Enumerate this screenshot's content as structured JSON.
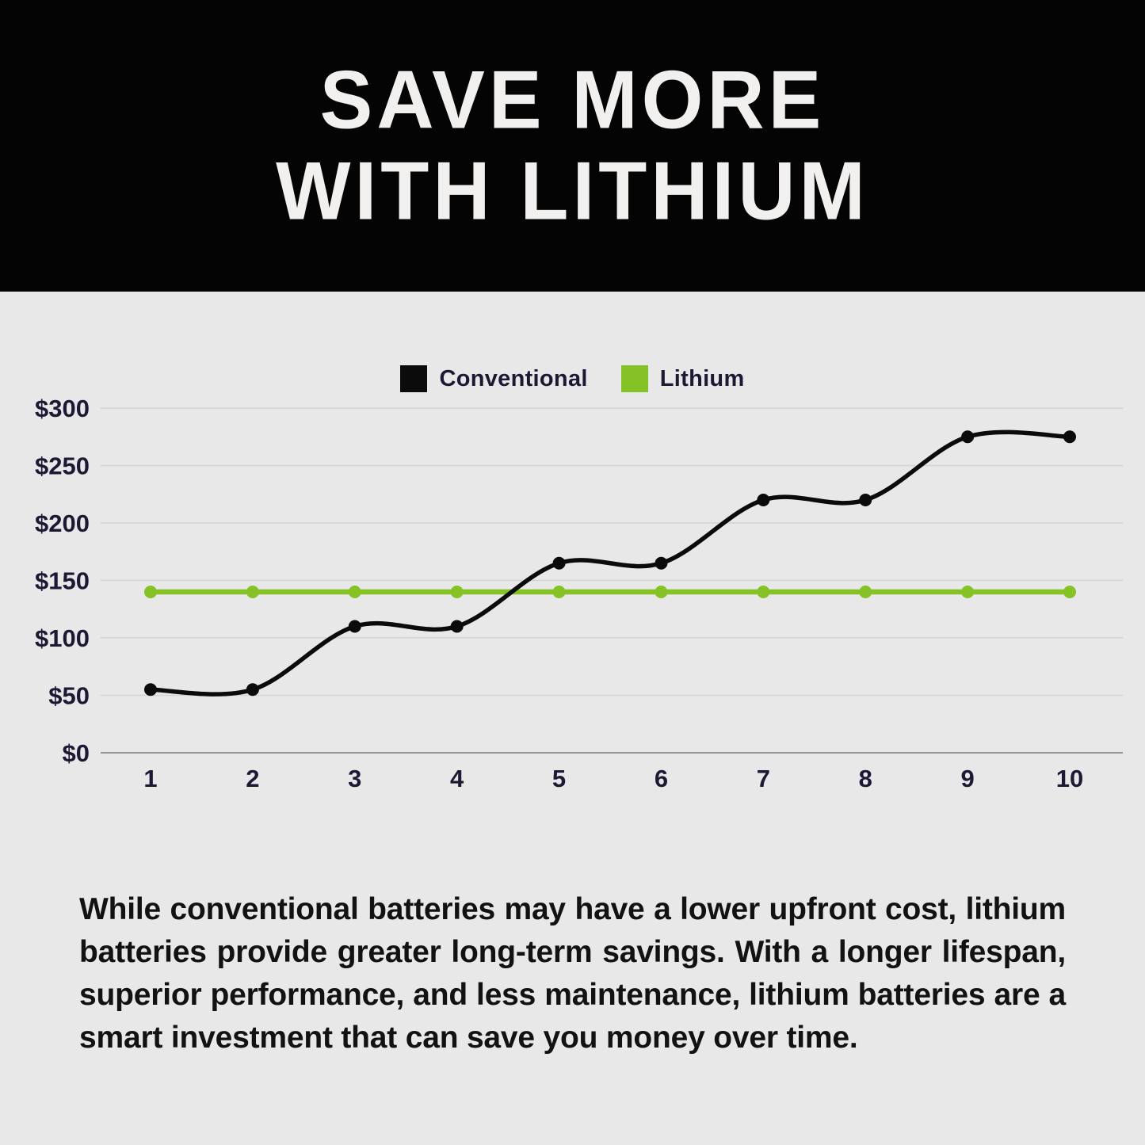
{
  "header": {
    "title_line1": "SAVE MORE",
    "title_line2": "WITH LITHIUM"
  },
  "legend": [
    {
      "label": "Conventional",
      "color": "#0b0b0b"
    },
    {
      "label": "Lithium",
      "color": "#84c226"
    }
  ],
  "chart_data": {
    "type": "line",
    "title": "",
    "x": [
      1,
      2,
      3,
      4,
      5,
      6,
      7,
      8,
      9,
      10
    ],
    "series": [
      {
        "name": "Conventional",
        "color": "#0b0b0b",
        "smooth": true,
        "values": [
          55,
          55,
          110,
          110,
          165,
          165,
          220,
          220,
          275,
          275
        ]
      },
      {
        "name": "Lithium",
        "color": "#84c226",
        "smooth": false,
        "values": [
          140,
          140,
          140,
          140,
          140,
          140,
          140,
          140,
          140,
          140
        ]
      }
    ],
    "yticks": [
      "$0",
      "$50",
      "$100",
      "$150",
      "$200",
      "$250",
      "$300"
    ],
    "ytick_values": [
      0,
      50,
      100,
      150,
      200,
      250,
      300
    ],
    "ylim": [
      0,
      300
    ],
    "xlabel": "",
    "ylabel": "",
    "grid": true,
    "legend_position": "top"
  },
  "body": {
    "paragraph": "While conventional batteries may have a lower upfront cost, lithium batteries provide greater long-term savings. With a longer lifespan, superior performance, and less maintenance, lithium batteries are a smart investment that can save you money over time."
  },
  "colors": {
    "background": "#e9e8e8",
    "header_background": "#040404",
    "title_text": "#f1f0ee",
    "tick_text": "#1e1834",
    "body_text": "#121212",
    "gridline": "#d3d2d5",
    "baseline": "#98969d",
    "conventional": "#0b0b0b",
    "lithium": "#84c226"
  }
}
